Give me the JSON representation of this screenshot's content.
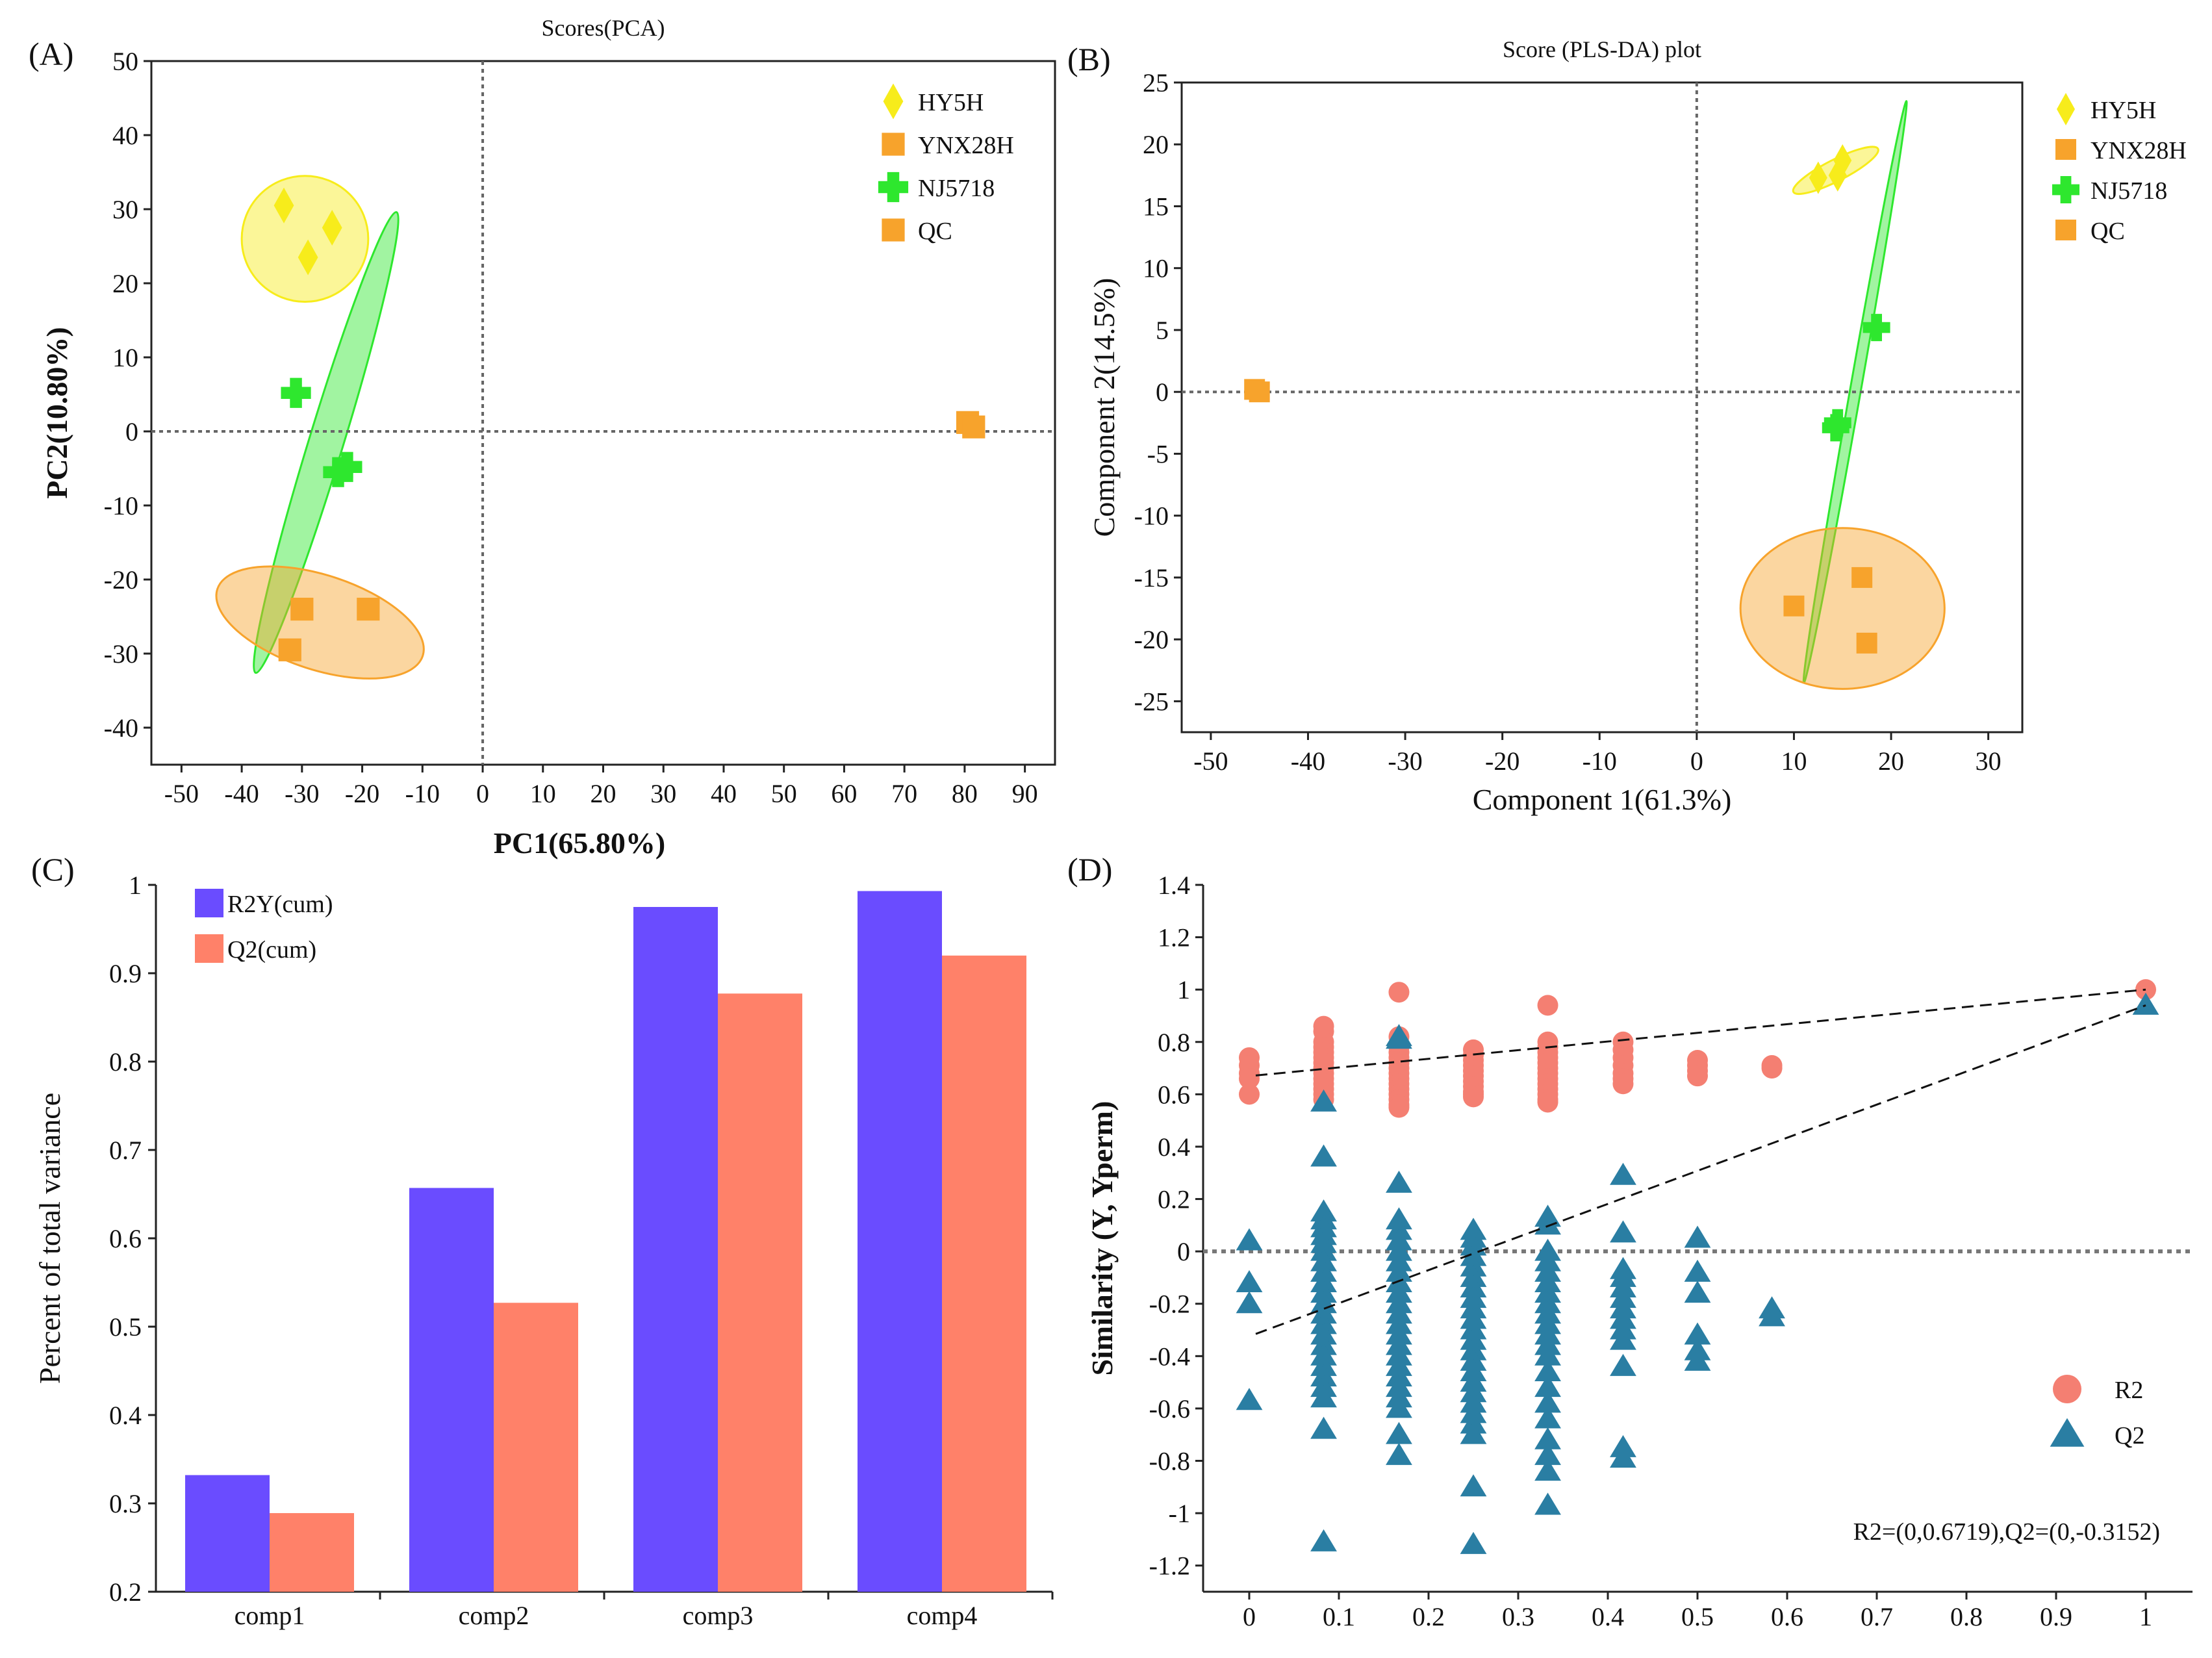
{
  "colors": {
    "hy5h": "#f7ec1b",
    "ynx28h": "#f7a32c",
    "nj5718": "#2ee72e",
    "qc": "#f7a32c",
    "r2y_bar": "#6a4cff",
    "q2_bar": "#ff8169",
    "r2_point": "#f47f72",
    "q2_point": "#2a7ea3"
  },
  "chart_data": [
    {
      "panel": "(A)",
      "type": "scatter",
      "title": "Scores(PCA)",
      "xlabel": "PC1(65.80%)",
      "ylabel": "PC2(10.80%)",
      "xlim": [
        -55,
        95
      ],
      "ylim": [
        -45,
        50
      ],
      "xticks": [
        "-50",
        "-40",
        "-30",
        "-20",
        "-10",
        "0",
        "10",
        "20",
        "30",
        "40",
        "50",
        "60",
        "70",
        "80",
        "90"
      ],
      "yticks": [
        "50",
        "40",
        "30",
        "20",
        "10",
        "0",
        "-10",
        "-20",
        "-30",
        "-40"
      ],
      "legend": [
        "HY5H",
        "YNX28H",
        "NJ5718",
        "QC"
      ],
      "series": [
        {
          "name": "HY5H",
          "marker": "diamond",
          "points": [
            [
              -33,
              30.5
            ],
            [
              -25,
              27.5
            ],
            [
              -29,
              23.5
            ]
          ]
        },
        {
          "name": "NJ5718",
          "marker": "cross",
          "points": [
            [
              -31,
              5.2
            ],
            [
              -22.5,
              -4.8
            ],
            [
              -24,
              -5.5
            ]
          ]
        },
        {
          "name": "YNX28H",
          "marker": "square",
          "points": [
            [
              -30,
              -24
            ],
            [
              -19,
              -24
            ],
            [
              -32,
              -29.5
            ]
          ]
        },
        {
          "name": "QC",
          "marker": "square",
          "points": [
            [
              80.5,
              1.2
            ],
            [
              81.5,
              0.6
            ]
          ]
        }
      ],
      "ellipses": [
        {
          "group": "HY5H",
          "cx": -29.5,
          "cy": 26,
          "rx": 10.5,
          "ry": 8.5,
          "angle_deg": 0
        },
        {
          "group": "NJ5718",
          "cx": -26,
          "cy": -1.5,
          "rx": 33,
          "ry": 2.8,
          "angle_deg": -73
        },
        {
          "group": "YNX28H",
          "cx": -27,
          "cy": -25.8,
          "rx": 17.5,
          "ry": 6.5,
          "angle_deg": 18
        }
      ]
    },
    {
      "panel": "(B)",
      "type": "scatter",
      "title": "Score (PLS-DA) plot",
      "xlabel": "Component 1(61.3%)",
      "ylabel": "Component 2(14.5%)",
      "xlim": [
        -53,
        33.5
      ],
      "ylim": [
        -27.5,
        25
      ],
      "xticks": [
        "-50",
        "-40",
        "-30",
        "-20",
        "-10",
        "0",
        "10",
        "20",
        "30"
      ],
      "yticks": [
        "25",
        "20",
        "15",
        "10",
        "5",
        "0",
        "-5",
        "-10",
        "-15",
        "-20",
        "-25"
      ],
      "legend": [
        "HY5H",
        "YNX28H",
        "NJ5718",
        "QC"
      ],
      "series": [
        {
          "name": "HY5H",
          "marker": "diamond",
          "points": [
            [
              12.5,
              17.3
            ],
            [
              15,
              18.7
            ],
            [
              14.5,
              17.5
            ]
          ]
        },
        {
          "name": "NJ5718",
          "marker": "cross",
          "points": [
            [
              18.5,
              5.2
            ],
            [
              14.5,
              -2.5
            ],
            [
              14.3,
              -2.9
            ]
          ]
        },
        {
          "name": "YNX28H",
          "marker": "square",
          "points": [
            [
              17,
              -15
            ],
            [
              10,
              -17.3
            ],
            [
              17.5,
              -20.3
            ]
          ]
        },
        {
          "name": "QC",
          "marker": "square",
          "points": [
            [
              -45.5,
              0.2
            ],
            [
              -45,
              0
            ]
          ]
        }
      ],
      "ellipses": [
        {
          "group": "HY5H",
          "cx": 14.3,
          "cy": 17.9,
          "rx": 4.6,
          "ry": 0.9,
          "angle_deg": -27
        },
        {
          "group": "NJ5718",
          "cx": 16.3,
          "cy": 0,
          "rx": 24,
          "ry": 0.55,
          "angle_deg": -80
        },
        {
          "group": "YNX28H",
          "cx": 15,
          "cy": -17.5,
          "rx": 10.5,
          "ry": 6.5,
          "angle_deg": 0
        }
      ]
    },
    {
      "panel": "(C)",
      "type": "bar",
      "title": "",
      "xlabel": "",
      "ylabel": "Percent of total variance",
      "ylim": [
        0.2,
        1.0
      ],
      "yticks": [
        "1",
        "0.9",
        "0.8",
        "0.7",
        "0.6",
        "0.5",
        "0.4",
        "0.3",
        "0.2"
      ],
      "categories": [
        "comp1",
        "comp2",
        "comp3",
        "comp4"
      ],
      "legend_location": "top-left",
      "series": [
        {
          "name": "R2Y(cum)",
          "values": [
            0.332,
            0.657,
            0.975,
            0.993
          ]
        },
        {
          "name": "Q2(cum)",
          "values": [
            0.289,
            0.527,
            0.877,
            0.92
          ]
        }
      ]
    },
    {
      "panel": "(D)",
      "type": "scatter",
      "title": "",
      "xlabel": "",
      "ylabel": "Similarity (Y, Yperm)",
      "xlim": [
        -0.05,
        1.05
      ],
      "ylim": [
        -1.3,
        1.4
      ],
      "xticks": [
        "0",
        "0.1",
        "0.2",
        "0.3",
        "0.4",
        "0.5",
        "0.6",
        "0.7",
        "0.8",
        "0.9",
        "1"
      ],
      "yticks": [
        "1.4",
        "1.2",
        "1",
        "0.8",
        "0.6",
        "0.4",
        "0.2",
        "0",
        "-0.2",
        "-0.4",
        "-0.6",
        "-0.8",
        "-1",
        "-1.2"
      ],
      "legend": [
        "R2",
        "Q2"
      ],
      "annotation": "R2=(0,0.6719),Q2=(0,-0.3152)",
      "regression_lines": [
        {
          "name": "R2",
          "from": [
            0,
            0.6719
          ],
          "to": [
            1,
            1.0
          ]
        },
        {
          "name": "Q2",
          "from": [
            0,
            -0.3152
          ],
          "to": [
            1,
            0.94
          ]
        }
      ],
      "r2_columns": [
        {
          "x": 0,
          "values": [
            0.74,
            0.71,
            0.68,
            0.66,
            0.6
          ]
        },
        {
          "x": 0.083,
          "values": [
            0.86,
            0.84,
            0.8,
            0.78,
            0.76,
            0.74,
            0.72,
            0.7,
            0.68,
            0.66,
            0.64,
            0.62,
            0.6,
            0.58
          ]
        },
        {
          "x": 0.167,
          "values": [
            0.99,
            0.82,
            0.78,
            0.76,
            0.74,
            0.72,
            0.7,
            0.68,
            0.66,
            0.64,
            0.62,
            0.6,
            0.58,
            0.56,
            0.55
          ]
        },
        {
          "x": 0.25,
          "values": [
            0.77,
            0.75,
            0.73,
            0.71,
            0.69,
            0.67,
            0.65,
            0.63,
            0.61,
            0.6,
            0.59
          ]
        },
        {
          "x": 0.333,
          "values": [
            0.94,
            0.8,
            0.78,
            0.76,
            0.74,
            0.72,
            0.7,
            0.68,
            0.66,
            0.64,
            0.62,
            0.6,
            0.58,
            0.57
          ]
        },
        {
          "x": 0.417,
          "values": [
            0.8,
            0.77,
            0.74,
            0.71,
            0.68,
            0.66,
            0.64
          ]
        },
        {
          "x": 0.5,
          "values": [
            0.73,
            0.71,
            0.69,
            0.67
          ]
        },
        {
          "x": 0.583,
          "values": [
            0.71,
            0.7
          ]
        },
        {
          "x": 1,
          "values": [
            1.0
          ]
        }
      ],
      "q2_columns": [
        {
          "x": 0,
          "values": [
            0.04,
            -0.12,
            -0.2,
            -0.57
          ]
        },
        {
          "x": 0.083,
          "values": [
            0.57,
            0.36,
            0.15,
            0.12,
            0.09,
            0.06,
            0.03,
            0.0,
            -0.04,
            -0.08,
            -0.12,
            -0.16,
            -0.2,
            -0.24,
            -0.28,
            -0.32,
            -0.36,
            -0.4,
            -0.44,
            -0.48,
            -0.52,
            -0.56,
            -0.68,
            -1.11
          ]
        },
        {
          "x": 0.167,
          "values": [
            0.82,
            0.81,
            0.26,
            0.12,
            0.08,
            0.04,
            0.0,
            -0.04,
            -0.08,
            -0.12,
            -0.16,
            -0.2,
            -0.24,
            -0.28,
            -0.32,
            -0.36,
            -0.4,
            -0.44,
            -0.48,
            -0.52,
            -0.56,
            -0.6,
            -0.7,
            -0.78
          ]
        },
        {
          "x": 0.25,
          "values": [
            0.08,
            0.05,
            0.02,
            -0.02,
            -0.06,
            -0.1,
            -0.14,
            -0.18,
            -0.22,
            -0.26,
            -0.3,
            -0.34,
            -0.38,
            -0.42,
            -0.46,
            -0.5,
            -0.54,
            -0.58,
            -0.62,
            -0.66,
            -0.7,
            -0.9,
            -1.12
          ]
        },
        {
          "x": 0.333,
          "values": [
            0.13,
            0.1,
            0.0,
            -0.04,
            -0.08,
            -0.12,
            -0.16,
            -0.2,
            -0.24,
            -0.28,
            -0.32,
            -0.36,
            -0.4,
            -0.46,
            -0.52,
            -0.58,
            -0.64,
            -0.72,
            -0.78,
            -0.84,
            -0.97
          ]
        },
        {
          "x": 0.417,
          "values": [
            0.29,
            0.07,
            -0.07,
            -0.1,
            -0.14,
            -0.18,
            -0.22,
            -0.26,
            -0.3,
            -0.34,
            -0.44,
            -0.75,
            -0.79
          ]
        },
        {
          "x": 0.5,
          "values": [
            0.05,
            -0.08,
            -0.16,
            -0.32,
            -0.38,
            -0.42
          ]
        },
        {
          "x": 0.583,
          "values": [
            -0.22,
            -0.25
          ]
        },
        {
          "x": 1,
          "values": [
            0.94
          ]
        }
      ]
    }
  ]
}
